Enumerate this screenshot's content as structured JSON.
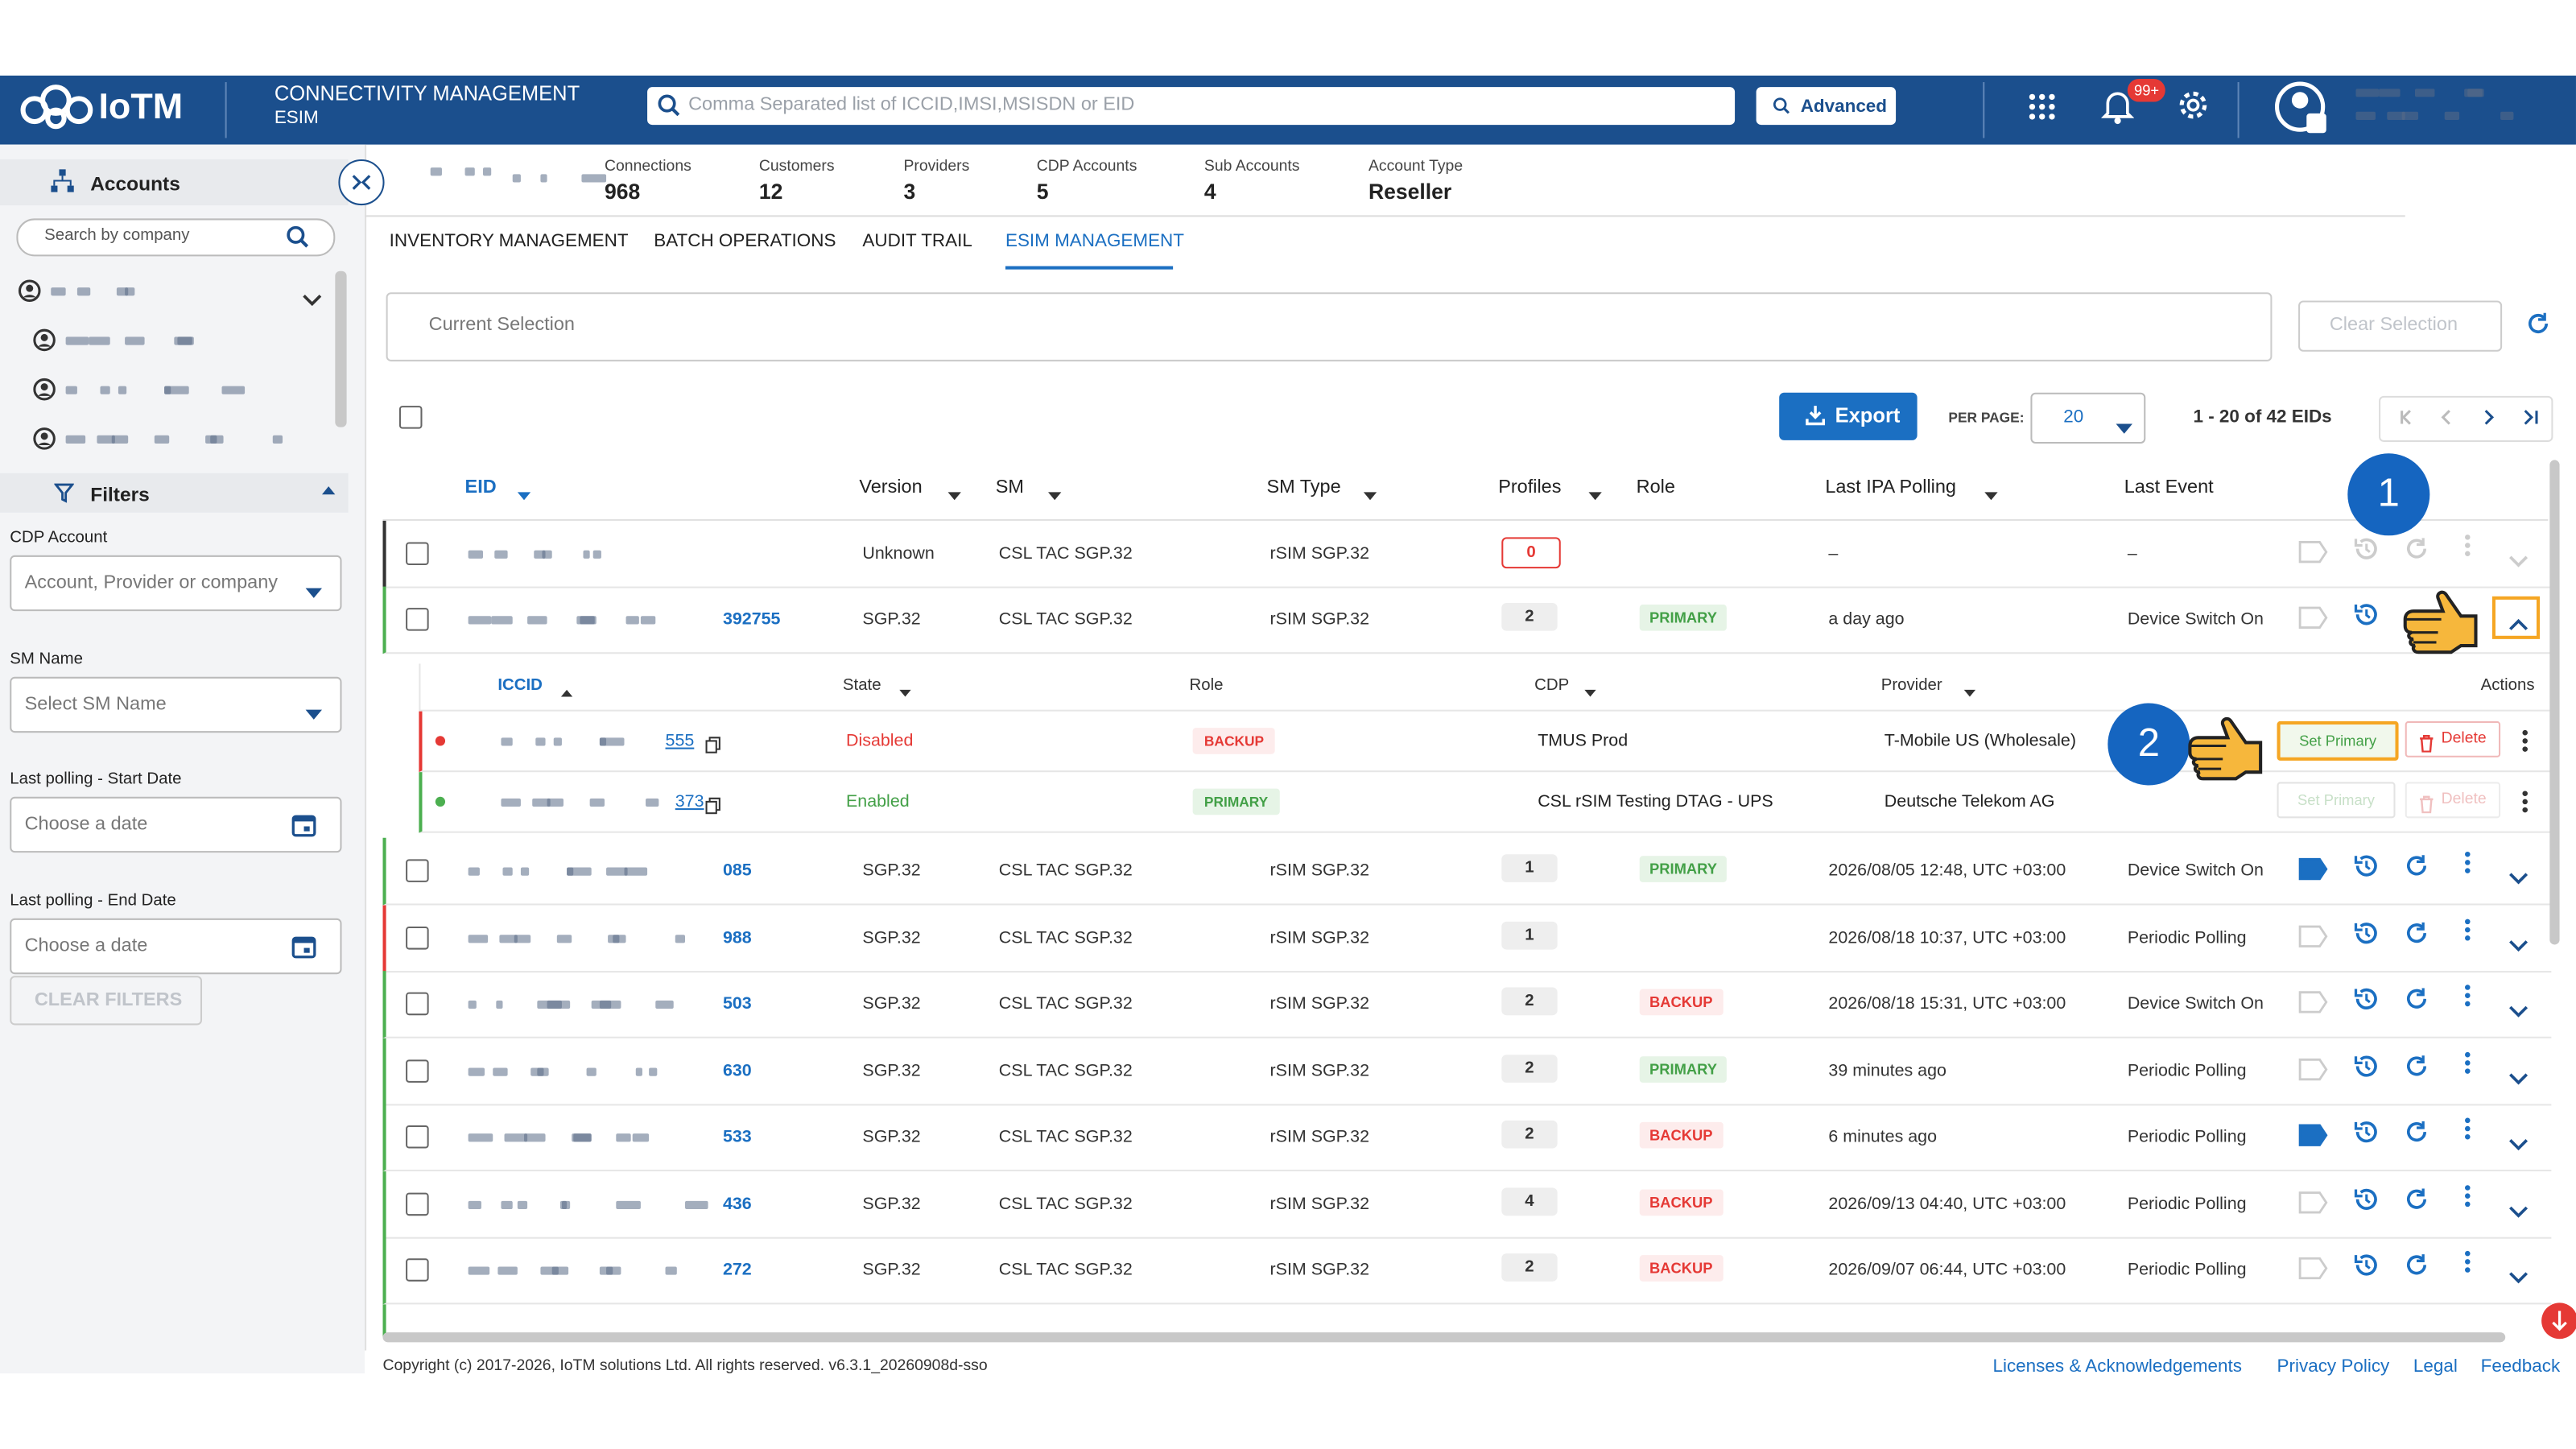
{
  "header": {
    "brand": "IoTM",
    "module": "CONNECTIVITY MANAGEMENT",
    "submodule": "ESIM",
    "search_placeholder": "Comma Separated list of ICCID,IMSI,MSISDN or EID",
    "advanced": "Advanced",
    "notifications": "99+"
  },
  "sidebar": {
    "accounts_title": "Accounts",
    "search_placeholder": "Search by company",
    "filters_title": "Filters",
    "filters": [
      {
        "label": "CDP Account",
        "placeholder": "Account, Provider or company",
        "kind": "select"
      },
      {
        "label": "SM Name",
        "placeholder": "Select SM Name",
        "kind": "select"
      },
      {
        "label": "Last polling - Start Date",
        "placeholder": "Choose a date",
        "kind": "date"
      },
      {
        "label": "Last polling - End Date",
        "placeholder": "Choose a date",
        "kind": "date"
      }
    ],
    "clear": "CLEAR FILTERS"
  },
  "stats": [
    {
      "label": "Connections",
      "value": 968
    },
    {
      "label": "Customers",
      "value": 12
    },
    {
      "label": "Providers",
      "value": 3
    },
    {
      "label": "CDP Accounts",
      "value": 5
    },
    {
      "label": "Sub Accounts",
      "value": 4
    },
    {
      "label": "Account Type",
      "value": "Reseller"
    }
  ],
  "tabs": {
    "items": [
      "INVENTORY MANAGEMENT",
      "BATCH OPERATIONS",
      "AUDIT TRAIL",
      "ESIM MANAGEMENT"
    ],
    "active": 3
  },
  "toolbar": {
    "current_selection": "Current Selection",
    "clear_selection": "Clear Selection",
    "export": "Export",
    "per_page_label": "PER PAGE:",
    "per_page": 20,
    "range": "1 - 20 of 42 EIDs"
  },
  "table": {
    "columns": [
      "EID",
      "Version",
      "SM",
      "SM Type",
      "Profiles",
      "Role",
      "Last IPA Polling",
      "Last Event"
    ],
    "rows": [
      {
        "eid": "",
        "version": "Unknown",
        "sm": "CSL TAC SGP.32",
        "sm_type": "rSIM SGP.32",
        "profiles": 0,
        "role": "",
        "last_polling": "–",
        "last_event": "–",
        "border": "#333333"
      },
      {
        "eid": "392755",
        "version": "SGP.32",
        "sm": "CSL TAC SGP.32",
        "sm_type": "rSIM SGP.32",
        "profiles": 2,
        "role": "PRIMARY",
        "last_polling": "a day ago",
        "last_event": "Device Switch On",
        "border": "#4caf50"
      },
      {
        "eid": "085",
        "version": "SGP.32",
        "sm": "CSL TAC SGP.32",
        "sm_type": "rSIM SGP.32",
        "profiles": 1,
        "role": "PRIMARY",
        "last_polling": "2026/08/05 12:48, UTC +03:00",
        "last_event": "Device Switch On",
        "border": "#4caf50"
      },
      {
        "eid": "988",
        "version": "SGP.32",
        "sm": "CSL TAC SGP.32",
        "sm_type": "rSIM SGP.32",
        "profiles": 1,
        "role": "",
        "last_polling": "2026/08/18 10:37, UTC +03:00",
        "last_event": "Periodic Polling",
        "border": "#e53935"
      },
      {
        "eid": "503",
        "version": "SGP.32",
        "sm": "CSL TAC SGP.32",
        "sm_type": "rSIM SGP.32",
        "profiles": 2,
        "role": "BACKUP",
        "last_polling": "2026/08/18 15:31, UTC +03:00",
        "last_event": "Device Switch On",
        "border": "#4caf50"
      },
      {
        "eid": "630",
        "version": "SGP.32",
        "sm": "CSL TAC SGP.32",
        "sm_type": "rSIM SGP.32",
        "profiles": 2,
        "role": "PRIMARY",
        "last_polling": "39 minutes ago",
        "last_event": "Periodic Polling",
        "border": "#4caf50"
      },
      {
        "eid": "533",
        "version": "SGP.32",
        "sm": "CSL TAC SGP.32",
        "sm_type": "rSIM SGP.32",
        "profiles": 2,
        "role": "BACKUP",
        "last_polling": "6 minutes ago",
        "last_event": "Periodic Polling",
        "border": "#4caf50"
      },
      {
        "eid": "436",
        "version": "SGP.32",
        "sm": "CSL TAC SGP.32",
        "sm_type": "rSIM SGP.32",
        "profiles": 4,
        "role": "BACKUP",
        "last_polling": "2026/09/13 04:40, UTC +03:00",
        "last_event": "Periodic Polling",
        "border": "#4caf50"
      },
      {
        "eid": "272",
        "version": "SGP.32",
        "sm": "CSL TAC SGP.32",
        "sm_type": "rSIM SGP.32",
        "profiles": 2,
        "role": "BACKUP",
        "last_polling": "2026/09/07 06:44, UTC +03:00",
        "last_event": "Periodic Polling",
        "border": "#4caf50"
      }
    ],
    "subtable": {
      "columns": [
        "ICCID",
        "State",
        "Role",
        "CDP",
        "Provider",
        "Actions"
      ],
      "rows": [
        {
          "iccid": "555",
          "state": "Disabled",
          "role": "BACKUP",
          "cdp": "TMUS Prod",
          "provider": "T-Mobile US (Wholesale)",
          "set_primary": "Set Primary",
          "delete": "Delete"
        },
        {
          "iccid": "373",
          "state": "Enabled",
          "role": "PRIMARY",
          "cdp": "CSL rSIM Testing DTAG - UPS",
          "provider": "Deutsche Telekom AG",
          "set_primary": "Set Primary",
          "delete": "Delete"
        }
      ]
    }
  },
  "annotations": [
    "1",
    "2"
  ],
  "footer": {
    "copyright": "Copyright (c) 2017-2026, IoTM solutions Ltd. All rights reserved. v6.3.1_20260908d-sso",
    "links": [
      "Licenses & Acknowledgements",
      "Privacy Policy",
      "Legal",
      "Feedback"
    ]
  }
}
